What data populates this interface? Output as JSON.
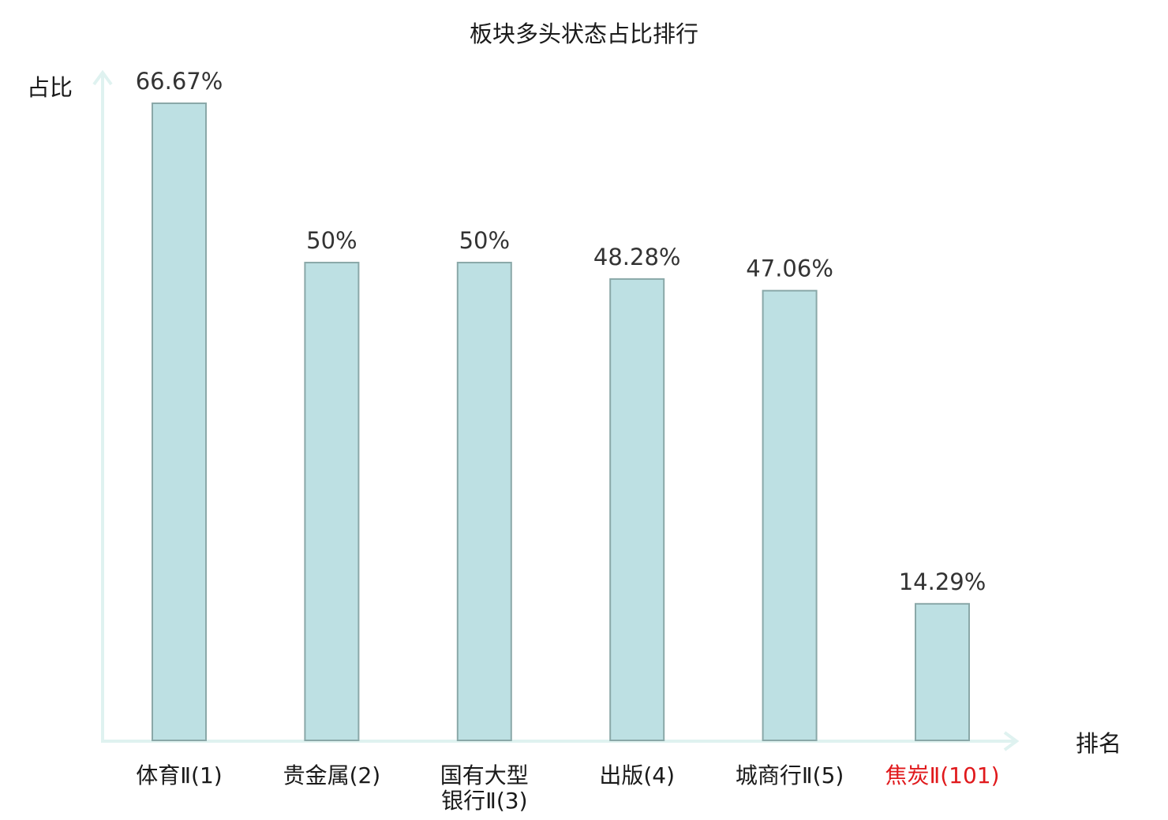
{
  "chart_data": {
    "type": "bar",
    "title": "板块多头状态占比排行",
    "ylabel": "占比",
    "xlabel": "排名",
    "categories": [
      [
        "体育Ⅱ(1)"
      ],
      [
        "贵金属(2)"
      ],
      [
        "国有大型",
        "银行Ⅱ(3)"
      ],
      [
        "出版(4)"
      ],
      [
        "城商行Ⅱ(5)"
      ],
      [
        "焦炭Ⅱ(101)"
      ]
    ],
    "values": [
      66.67,
      50,
      50,
      48.28,
      47.06,
      14.29
    ],
    "value_labels": [
      "66.67%",
      "50%",
      "50%",
      "48.28%",
      "47.06%",
      "14.29%"
    ],
    "highlight_index": 5,
    "ylim": [
      0,
      70
    ],
    "grid": false,
    "colors": {
      "bar_fill": "#bde0e3",
      "bar_stroke": "#8aa8a8",
      "axis": "#dff2f0",
      "text": "#1a1a1a",
      "highlight_text": "#e0191c"
    }
  }
}
